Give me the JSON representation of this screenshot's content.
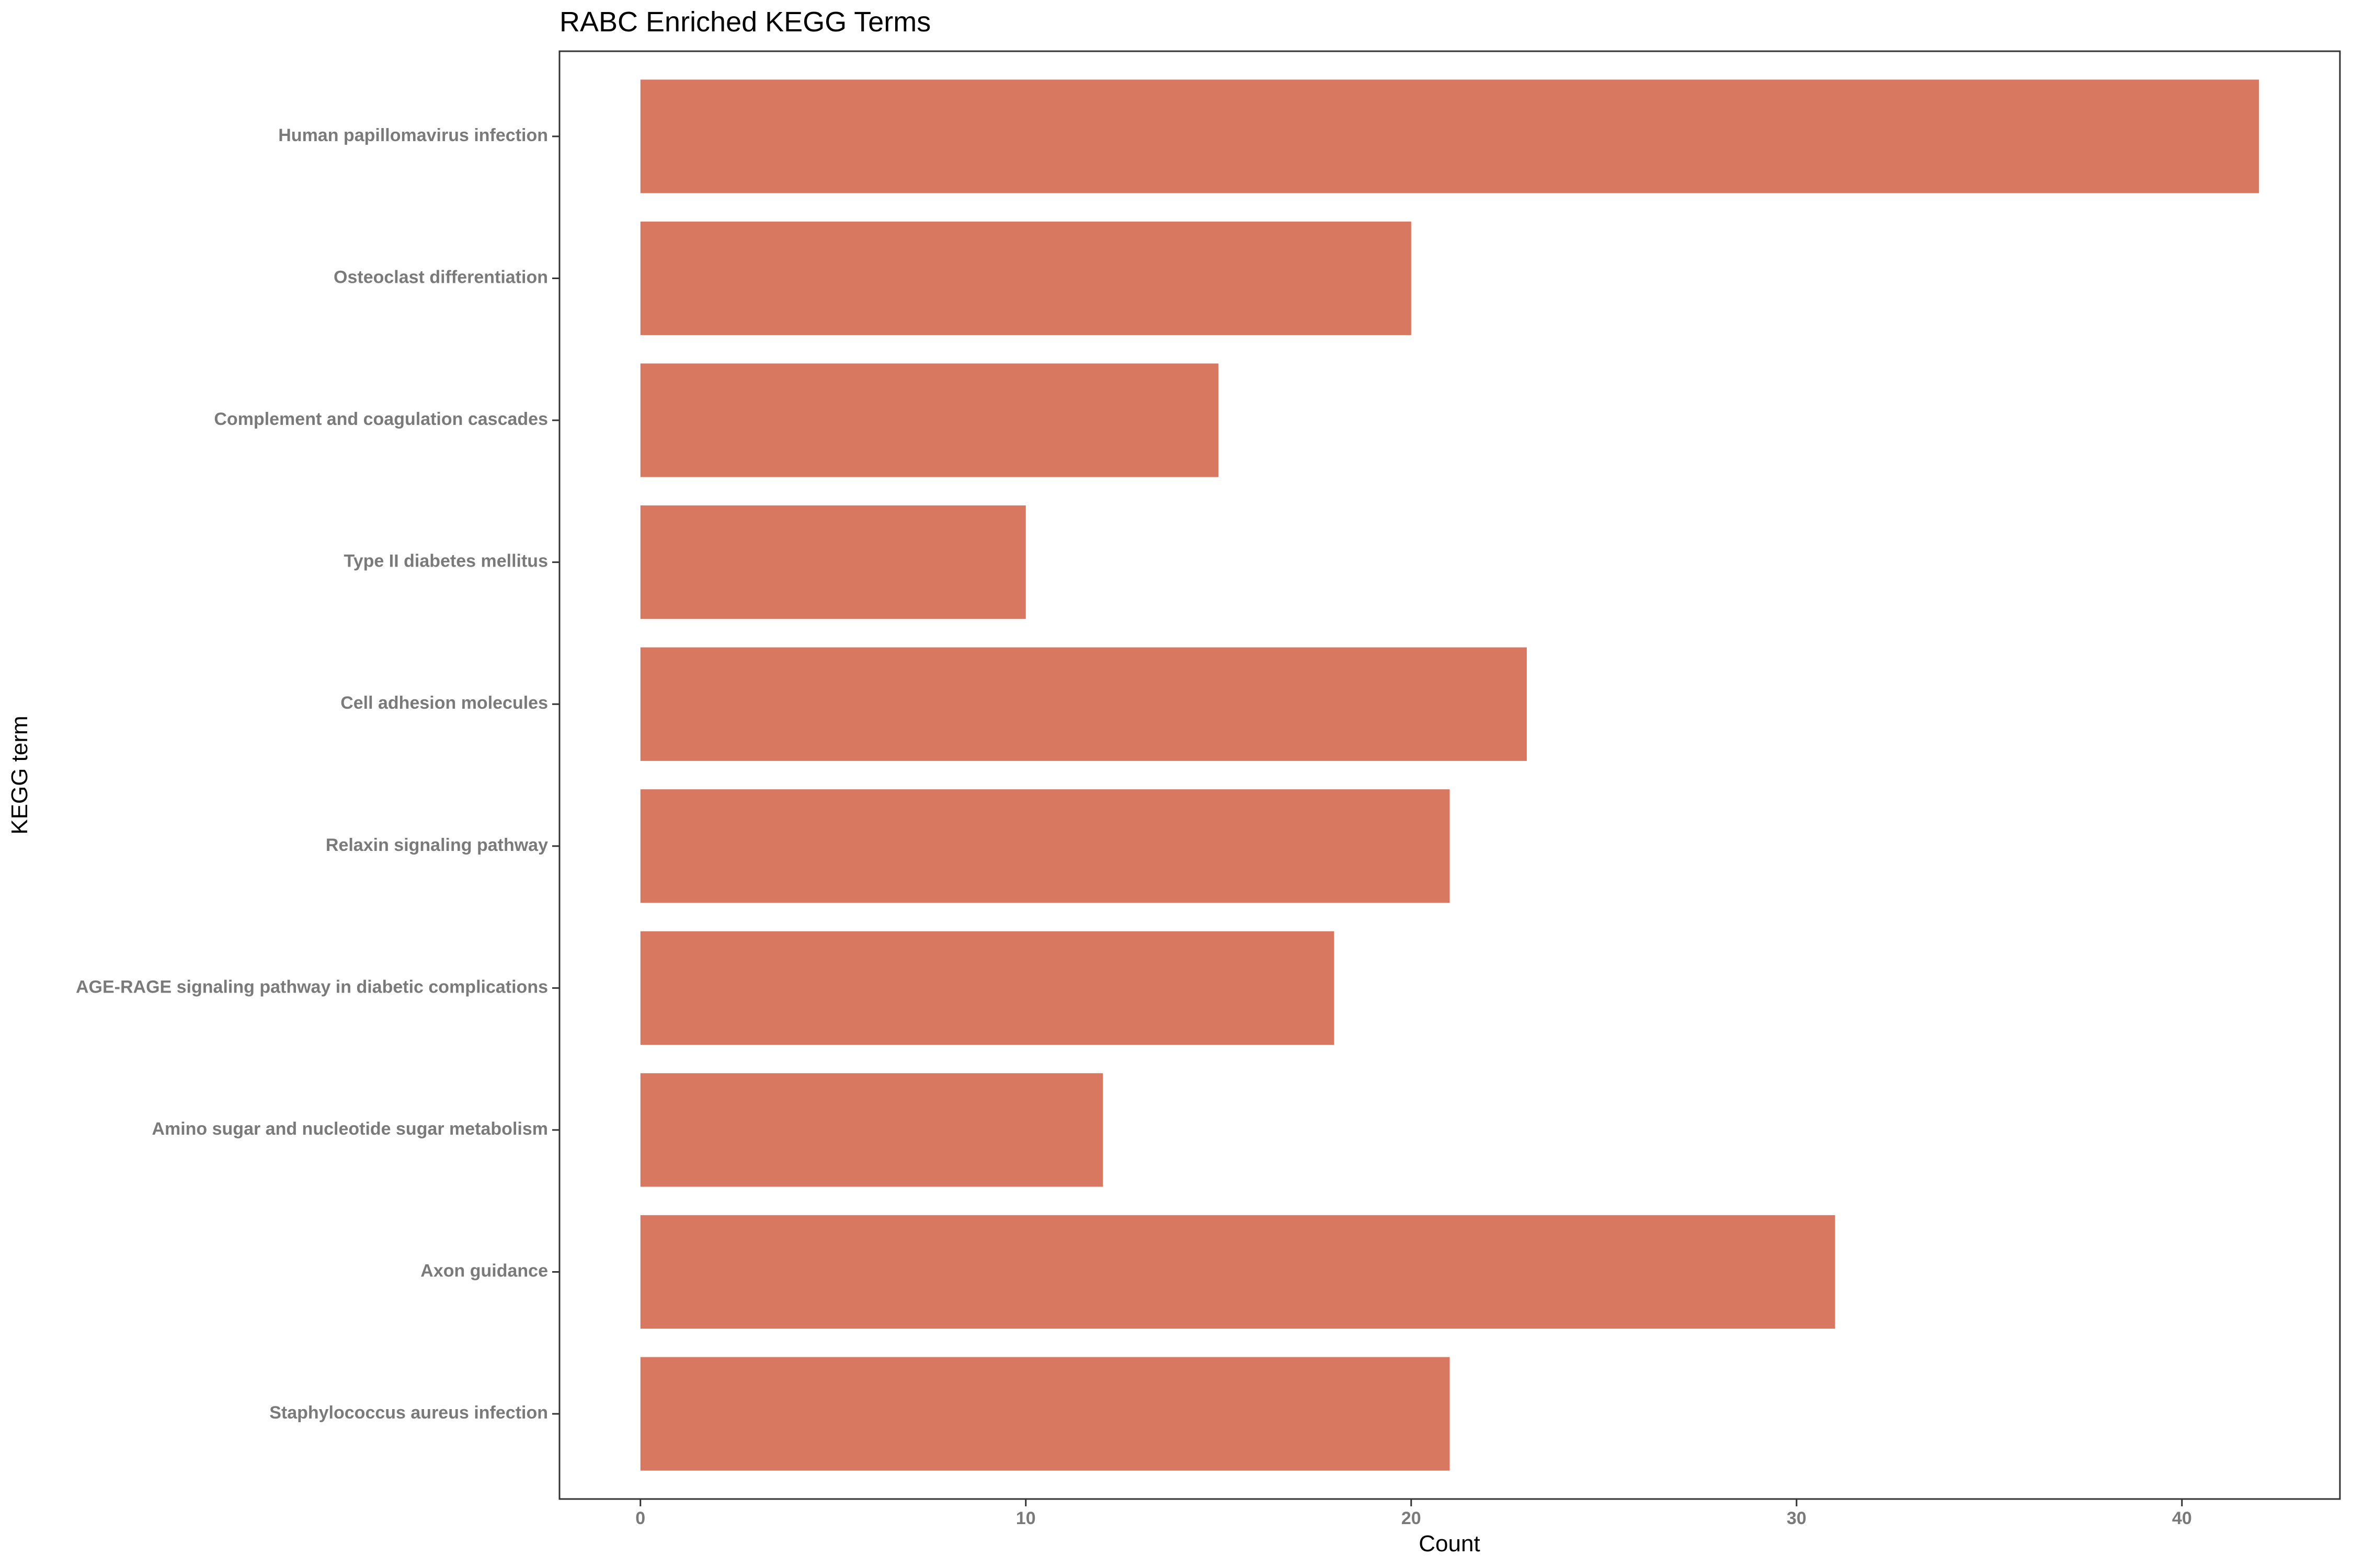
{
  "chart_data": {
    "type": "bar",
    "orientation": "horizontal",
    "title": "RABC Enriched KEGG Terms",
    "xlabel": "Count",
    "ylabel": "KEGG term",
    "categories": [
      "Human papillomavirus infection",
      "Osteoclast differentiation",
      "Complement and coagulation cascades",
      "Type II diabetes mellitus",
      "Cell adhesion molecules",
      "Relaxin signaling pathway",
      "AGE-RAGE signaling pathway in diabetic complications",
      "Amino sugar and nucleotide sugar metabolism",
      "Axon guidance",
      "Staphylococcus aureus infection"
    ],
    "values": [
      42,
      20,
      15,
      10,
      23,
      21,
      18,
      12,
      31,
      21
    ],
    "xlim": [
      -2.1,
      44.1
    ],
    "xticks": [
      0,
      10,
      20,
      30,
      40
    ],
    "grid": false,
    "legend": "none",
    "bar_color": "#d97861"
  }
}
